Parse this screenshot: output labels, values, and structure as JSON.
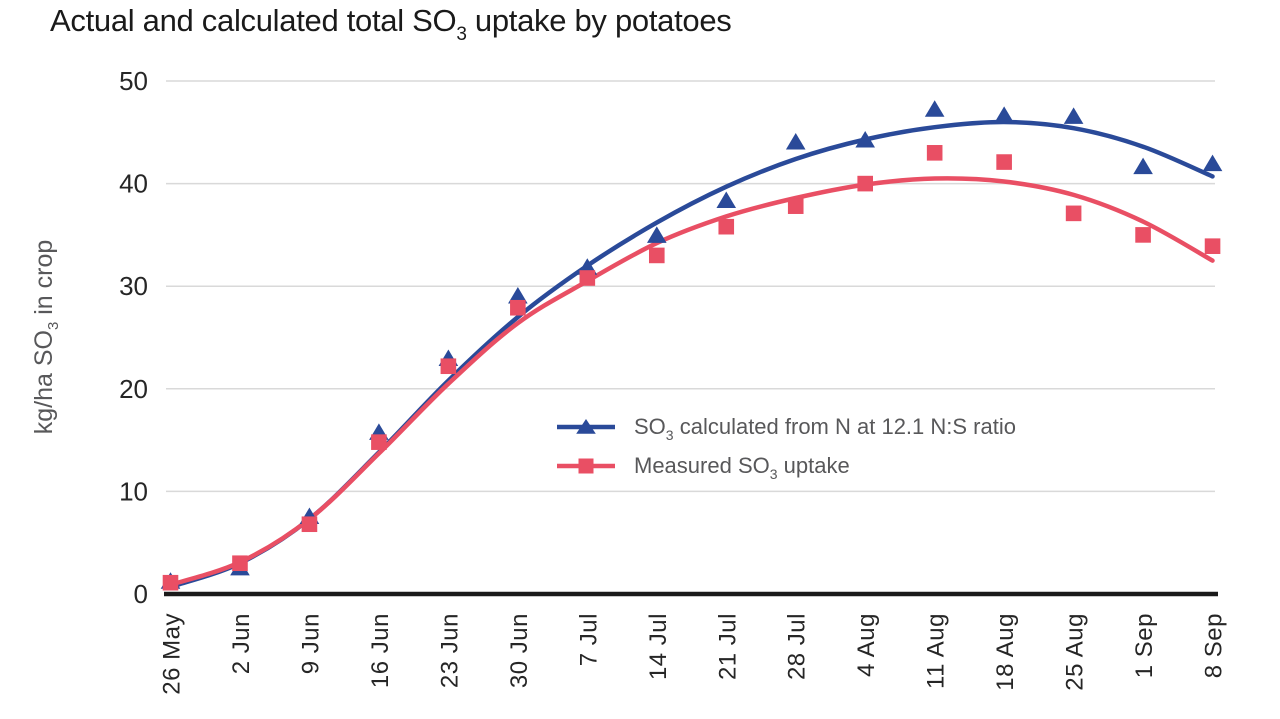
{
  "title": {
    "pre": "Actual and calculated total SO",
    "sub": "3",
    "post": " uptake by potatoes"
  },
  "y_axis": {
    "label_pre": "kg/ha SO",
    "label_sub": "3",
    "label_post": " in crop",
    "ticks": [
      0,
      10,
      20,
      30,
      40,
      50
    ]
  },
  "legend": [
    {
      "pre": "SO",
      "sub": "3",
      "post": " calculated from N at 12.1 N:S ratio",
      "marker": "triangle",
      "color": "#2A4A99"
    },
    {
      "pre": "Measured SO",
      "sub": "3",
      "post": " uptake",
      "marker": "square",
      "color": "#E94F64"
    }
  ],
  "colors": {
    "calculated_blue": "#2A4A99",
    "measured_red": "#E94F64",
    "gridline": "#D9D9D9",
    "axis": "#1A1A1A",
    "tick_text": "#262626",
    "legend_text": "#58585A"
  },
  "chart_data": {
    "type": "line",
    "title": "Actual and calculated total SO3 uptake by potatoes",
    "xlabel": "",
    "ylabel": "kg/ha SO3 in crop",
    "ylim": [
      0,
      50
    ],
    "y_ticks": [
      0,
      10,
      20,
      30,
      40,
      50
    ],
    "grid": "horizontal",
    "legend_position": "inside center-right",
    "categories": [
      "26 May",
      "2 Jun",
      "9 Jun",
      "16 Jun",
      "23 Jun",
      "30 Jun",
      "7 Jul",
      "14 Jul",
      "21 Jul",
      "28 Jul",
      "4 Aug",
      "11 Aug",
      "18 Aug",
      "25 Aug",
      "1 Sep",
      "8 Sep"
    ],
    "series": [
      {
        "name": "SO3 calculated from N at 12.1 N:S ratio",
        "marker": "triangle",
        "color": "#2A4A99",
        "values": [
          1.2,
          2.5,
          7.5,
          15.7,
          22.9,
          29.0,
          31.8,
          34.9,
          38.3,
          44.0,
          44.2,
          47.2,
          46.6,
          46.5,
          41.6,
          41.9
        ],
        "trend": [
          0.7,
          3.0,
          7.3,
          13.8,
          20.8,
          27.0,
          32.0,
          36.2,
          39.7,
          42.4,
          44.3,
          45.5,
          46.0,
          45.4,
          43.6,
          40.7
        ]
      },
      {
        "name": "Measured SO3 uptake",
        "marker": "square",
        "color": "#E94F64",
        "values": [
          1.1,
          3.0,
          6.8,
          14.8,
          22.2,
          27.9,
          30.8,
          33.0,
          35.8,
          37.8,
          40.0,
          43.0,
          42.1,
          37.1,
          35.0,
          33.9
        ],
        "trend": [
          0.9,
          3.1,
          7.3,
          13.7,
          20.5,
          26.4,
          30.5,
          34.2,
          36.8,
          38.6,
          39.9,
          40.5,
          40.2,
          38.9,
          36.3,
          32.5
        ]
      }
    ]
  }
}
